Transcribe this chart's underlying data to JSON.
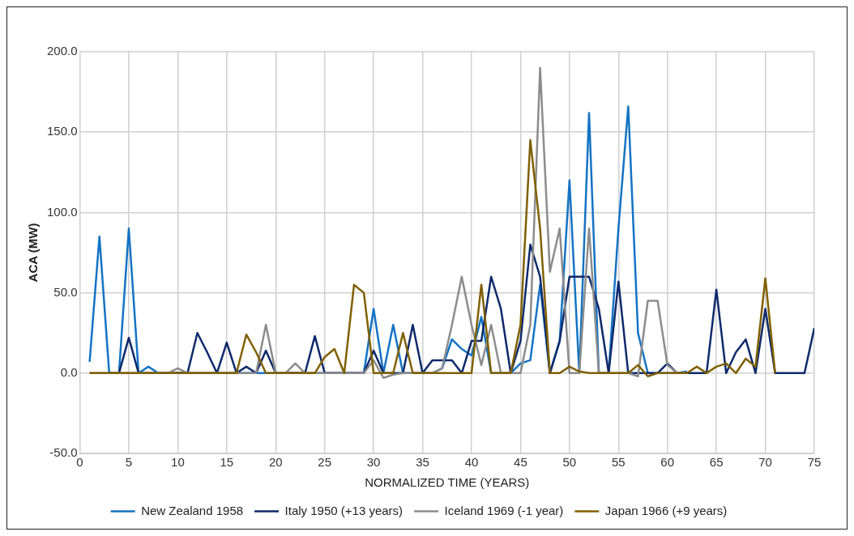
{
  "chart_data": {
    "type": "line",
    "xlabel": "NORMALIZED TIME (YEARS)",
    "ylabel": "ACA (MW)",
    "x": [
      1,
      2,
      3,
      4,
      5,
      6,
      7,
      8,
      9,
      10,
      11,
      12,
      13,
      14,
      15,
      16,
      17,
      18,
      19,
      20,
      21,
      22,
      23,
      24,
      25,
      26,
      27,
      28,
      29,
      30,
      31,
      32,
      33,
      34,
      35,
      36,
      37,
      38,
      39,
      40,
      41,
      42,
      43,
      44,
      45,
      46,
      47,
      48,
      49,
      50,
      51,
      52,
      53,
      54,
      55,
      56,
      57,
      58,
      59,
      60,
      61,
      62,
      63,
      64,
      65,
      66,
      67,
      68,
      69,
      70,
      71,
      72,
      73,
      74,
      75
    ],
    "series": [
      {
        "name": "New Zealand 1958",
        "color": "#1473c4",
        "values": [
          7,
          85,
          0,
          0,
          90,
          0,
          4,
          0,
          0,
          0,
          0,
          0,
          0,
          0,
          0,
          0,
          0,
          0,
          0,
          0,
          0,
          0,
          0,
          0,
          0,
          0,
          0,
          0,
          0,
          40,
          0,
          30,
          0,
          0,
          0,
          0,
          3,
          21,
          15,
          11,
          35,
          0,
          0,
          0,
          6,
          8,
          55,
          0,
          20,
          120,
          0,
          162,
          0,
          0,
          90,
          166,
          25,
          0,
          0,
          0,
          0,
          1,
          null,
          null,
          null,
          null,
          null,
          null,
          null,
          null,
          null,
          null,
          null,
          null,
          null
        ]
      },
      {
        "name": "Italy 1950 (+13 years)",
        "color": "#0e2a6b",
        "values": [
          null,
          null,
          0,
          0,
          22,
          0,
          0,
          0,
          0,
          0,
          0,
          25,
          13,
          0,
          19,
          0,
          4,
          0,
          14,
          0,
          0,
          0,
          0,
          23,
          0,
          0,
          0,
          0,
          0,
          14,
          0,
          0,
          0,
          30,
          0,
          8,
          8,
          8,
          0,
          20,
          20,
          60,
          40,
          0,
          20,
          80,
          60,
          0,
          20,
          60,
          60,
          60,
          40,
          0,
          57,
          0,
          0,
          0,
          0,
          6,
          0,
          0,
          0,
          0,
          52,
          0,
          13,
          21,
          0,
          40,
          0,
          0,
          0,
          0,
          28
        ]
      },
      {
        "name": "Iceland 1969 (-1 year)",
        "color": "#8c8c8c",
        "values": [
          0,
          0,
          0,
          0,
          0,
          0,
          0,
          0,
          0,
          3,
          0,
          0,
          0,
          0,
          0,
          0,
          0,
          0,
          30,
          0,
          0,
          6,
          0,
          0,
          0,
          0,
          0,
          0,
          0,
          8,
          -3,
          -1,
          0,
          0,
          0,
          0,
          3,
          30,
          60,
          30,
          5,
          30,
          0,
          0,
          0,
          30,
          190,
          63,
          90,
          0,
          0,
          90,
          0,
          0,
          0,
          0,
          -2,
          45,
          45,
          5,
          0,
          0,
          null,
          null,
          null,
          null,
          null,
          null,
          null,
          null,
          null,
          null,
          null,
          null,
          null
        ]
      },
      {
        "name": "Japan 1966 (+9 years)",
        "color": "#806000",
        "values": [
          0,
          0,
          0,
          0,
          0,
          0,
          0,
          0,
          0,
          0,
          0,
          0,
          0,
          0,
          0,
          0,
          24,
          13,
          0,
          0,
          0,
          0,
          0,
          0,
          10,
          15,
          0,
          55,
          50,
          0,
          0,
          0,
          25,
          0,
          0,
          0,
          0,
          0,
          0,
          0,
          55,
          0,
          0,
          0,
          30,
          145,
          90,
          0,
          0,
          4,
          1,
          0,
          0,
          0,
          0,
          0,
          5,
          -2,
          0,
          0,
          0,
          0,
          4,
          0,
          4,
          6,
          0,
          9,
          4,
          59,
          0,
          null,
          null,
          null,
          null
        ]
      }
    ],
    "xlim": [
      0,
      75
    ],
    "xticks": [
      0,
      5,
      10,
      15,
      20,
      25,
      30,
      35,
      40,
      45,
      50,
      55,
      60,
      65,
      70,
      75
    ],
    "ylim": [
      -50,
      200
    ],
    "yticks": [
      {
        "value": -50,
        "label": "-50.0"
      },
      {
        "value": 0,
        "label": "0.0"
      },
      {
        "value": 50,
        "label": "50.0"
      },
      {
        "value": 100,
        "label": "100.0"
      },
      {
        "value": 150,
        "label": "150.0"
      },
      {
        "value": 200,
        "label": "200.0"
      }
    ],
    "grid": true,
    "legend": "bottom",
    "marker": "none",
    "line_style": "solid"
  }
}
